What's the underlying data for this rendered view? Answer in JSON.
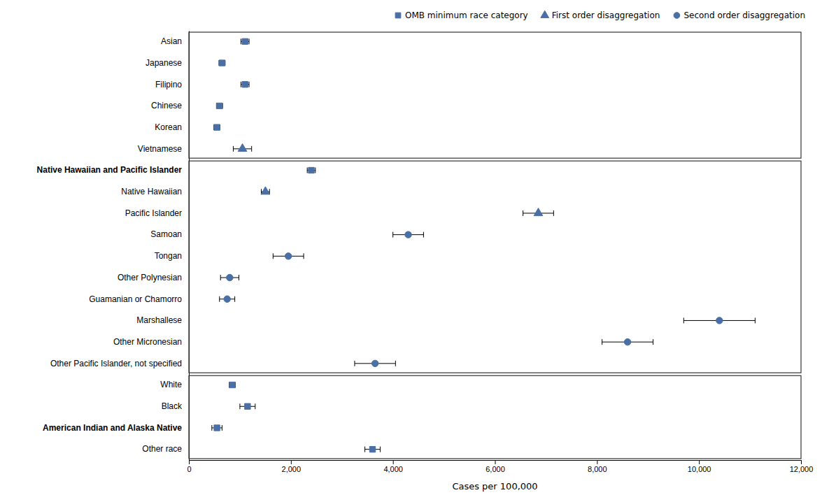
{
  "chart_data": {
    "type": "dot",
    "categories": [
      "Asian",
      "Japanese",
      "Filipino",
      "Chinese",
      "Korean",
      "Vietnamese",
      "Native Hawaiian and Pacific Islander",
      "Native Hawaiian",
      "Pacific Islander",
      "Samoan",
      "Tongan",
      "Other Polynesian",
      "Guamanian or Chamorro",
      "Marshallese",
      "Other Micronesian",
      "Other Pacific Islander, not specified",
      "White",
      "Black",
      "American Indian and Alaska Native",
      "Other race"
    ],
    "series": [
      {
        "name": "OMB minimum race category",
        "marker": "square",
        "color": "#4a6fa5",
        "values": [
          1100,
          650,
          1100,
          600,
          550,
          null,
          2400,
          null,
          null,
          null,
          null,
          null,
          null,
          null,
          null,
          null,
          850,
          1150,
          550,
          3600
        ],
        "error_low": [
          80,
          60,
          80,
          60,
          60,
          null,
          80,
          null,
          null,
          null,
          null,
          null,
          null,
          null,
          null,
          null,
          60,
          150,
          100,
          150
        ],
        "error_high": [
          80,
          60,
          80,
          60,
          60,
          null,
          80,
          null,
          null,
          null,
          null,
          null,
          null,
          null,
          null,
          null,
          60,
          150,
          100,
          150
        ]
      },
      {
        "name": "First order disaggregation",
        "marker": "triangle",
        "color": "#4a6fa5",
        "values": [
          null,
          null,
          null,
          null,
          null,
          1050,
          null,
          1500,
          6850,
          null,
          null,
          null,
          null,
          null,
          null,
          null,
          null,
          null,
          null,
          null
        ],
        "error_low": [
          null,
          null,
          null,
          null,
          null,
          180,
          null,
          80,
          300,
          null,
          null,
          null,
          null,
          null,
          null,
          null,
          null,
          null,
          null,
          null
        ],
        "error_high": [
          null,
          null,
          null,
          null,
          null,
          180,
          null,
          80,
          300,
          null,
          null,
          null,
          null,
          null,
          null,
          null,
          null,
          null,
          null,
          null
        ]
      },
      {
        "name": "Second order disaggregation",
        "marker": "circle",
        "color": "#4a6fa5",
        "values": [
          null,
          null,
          null,
          null,
          null,
          null,
          null,
          null,
          null,
          4300,
          1950,
          800,
          750,
          10400,
          8600,
          3650,
          null,
          null,
          null,
          null
        ],
        "error_low": [
          null,
          null,
          null,
          null,
          null,
          null,
          null,
          null,
          null,
          300,
          300,
          180,
          150,
          700,
          500,
          400,
          null,
          null,
          null,
          null
        ],
        "error_high": [
          null,
          null,
          null,
          null,
          null,
          null,
          null,
          null,
          null,
          300,
          300,
          180,
          150,
          700,
          500,
          400,
          null,
          null,
          null,
          null
        ]
      }
    ],
    "x_label": "Cases per 100,000",
    "xlim": [
      0,
      12000
    ],
    "xticks": [
      0,
      {
        "value": 2000,
        "label": "2,000"
      },
      {
        "value": 4000,
        "label": "4,000"
      },
      {
        "value": 6000,
        "label": "6,000"
      },
      {
        "value": 8000,
        "label": "8,000"
      },
      {
        "value": 10000,
        "label": "10,000"
      },
      {
        "value": 12000,
        "label": "12,000"
      }
    ],
    "grid": false,
    "legend": "top-right"
  }
}
